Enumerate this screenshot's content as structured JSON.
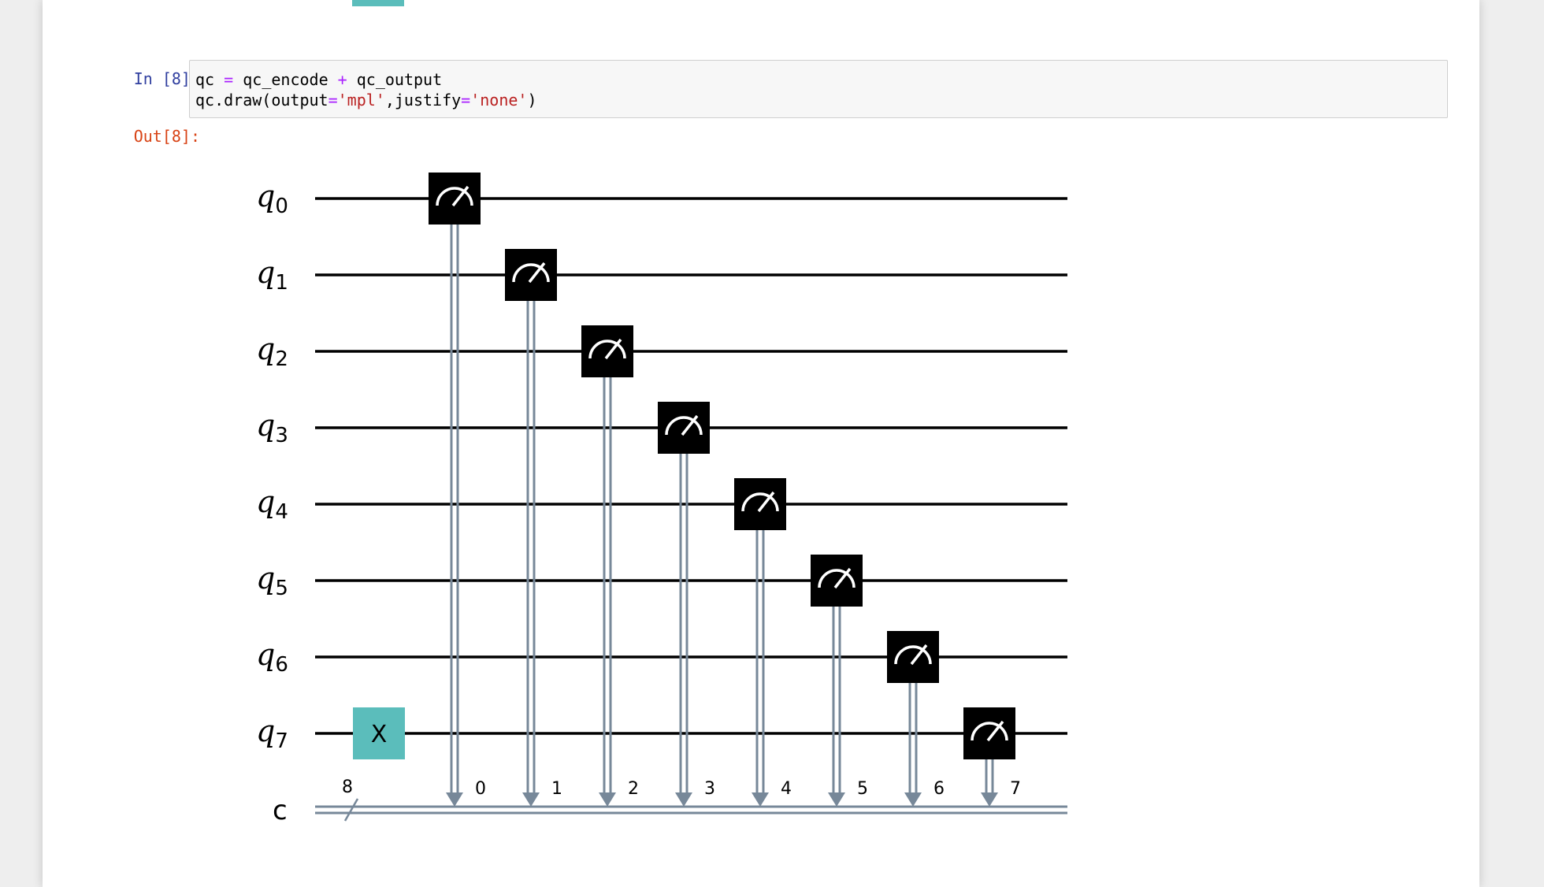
{
  "cell": {
    "in_prompt": "In [8]:",
    "out_prompt": "Out[8]:",
    "code_line1": {
      "a": "qc",
      "eq": "=",
      "b": "qc_encode",
      "plus": "+",
      "c": "qc_output"
    },
    "code_line2": {
      "a": "qc.draw(output",
      "eq1": "=",
      "s1": "'mpl'",
      "b": ",justify",
      "eq2": "=",
      "s2": "'none'",
      "c": ")"
    }
  },
  "circuit": {
    "qubit_labels": [
      {
        "base": "q",
        "sub": "0"
      },
      {
        "base": "q",
        "sub": "1"
      },
      {
        "base": "q",
        "sub": "2"
      },
      {
        "base": "q",
        "sub": "3"
      },
      {
        "base": "q",
        "sub": "4"
      },
      {
        "base": "q",
        "sub": "5"
      },
      {
        "base": "q",
        "sub": "6"
      },
      {
        "base": "q",
        "sub": "7"
      }
    ],
    "classical_label": "c",
    "classical_width_label": "8",
    "x_gate": {
      "label": "X",
      "qubit": 7,
      "color": "#5bbdbb"
    },
    "measurements": [
      {
        "qubit": 0,
        "bit": "0"
      },
      {
        "qubit": 1,
        "bit": "1"
      },
      {
        "qubit": 2,
        "bit": "2"
      },
      {
        "qubit": 3,
        "bit": "3"
      },
      {
        "qubit": 4,
        "bit": "4"
      },
      {
        "qubit": 5,
        "bit": "5"
      },
      {
        "qubit": 6,
        "bit": "6"
      },
      {
        "qubit": 7,
        "bit": "7"
      }
    ],
    "colors": {
      "wire": "#000000",
      "classical": "#778899",
      "measure_box": "#000000",
      "measure_icon": "#ffffff"
    }
  }
}
